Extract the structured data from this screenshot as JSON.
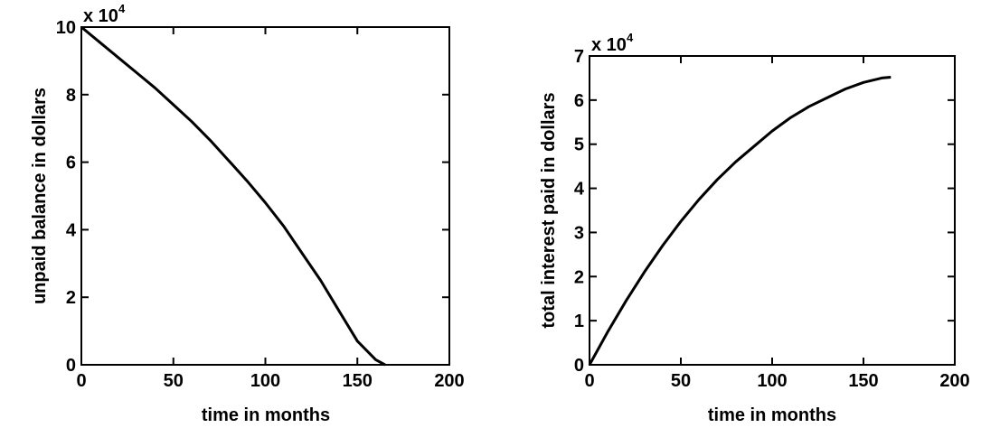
{
  "chart_data": [
    {
      "type": "line",
      "title": "",
      "xlabel": "time in months",
      "ylabel": "unpaid balance in dollars",
      "y_multiplier_label": "x 10",
      "y_multiplier_exponent": "4",
      "xlim": [
        0,
        200
      ],
      "ylim": [
        0,
        10
      ],
      "x_ticks": [
        0,
        50,
        100,
        150,
        200
      ],
      "y_ticks": [
        0,
        2,
        4,
        6,
        8,
        10
      ],
      "x_tick_labels": [
        "0",
        "50",
        "100",
        "150",
        "200"
      ],
      "y_tick_labels": [
        "0",
        "2",
        "4",
        "6",
        "8",
        "10"
      ],
      "grid": false,
      "line_color": "#000000",
      "series": [
        {
          "x": [
            0,
            10,
            20,
            30,
            40,
            50,
            60,
            70,
            80,
            90,
            100,
            110,
            120,
            130,
            140,
            150,
            160,
            165
          ],
          "values": [
            10.0,
            9.55,
            9.1,
            8.65,
            8.2,
            7.7,
            7.2,
            6.65,
            6.05,
            5.45,
            4.8,
            4.1,
            3.3,
            2.5,
            1.6,
            0.7,
            0.15,
            0.0
          ]
        }
      ]
    },
    {
      "type": "line",
      "title": "",
      "xlabel": "time in months",
      "ylabel": "total interest paid in dollars",
      "y_multiplier_label": "x 10",
      "y_multiplier_exponent": "4",
      "xlim": [
        0,
        200
      ],
      "ylim": [
        0,
        7
      ],
      "x_ticks": [
        0,
        50,
        100,
        150,
        200
      ],
      "y_ticks": [
        0,
        1,
        2,
        3,
        4,
        5,
        6,
        7
      ],
      "x_tick_labels": [
        "0",
        "50",
        "100",
        "150",
        "200"
      ],
      "y_tick_labels": [
        "0",
        "1",
        "2",
        "3",
        "4",
        "5",
        "6",
        "7"
      ],
      "grid": false,
      "line_color": "#000000",
      "series": [
        {
          "x": [
            0,
            10,
            20,
            30,
            40,
            50,
            60,
            70,
            80,
            90,
            100,
            110,
            120,
            130,
            140,
            150,
            160,
            165
          ],
          "values": [
            0.0,
            0.75,
            1.45,
            2.1,
            2.7,
            3.25,
            3.75,
            4.2,
            4.6,
            4.95,
            5.3,
            5.6,
            5.85,
            6.05,
            6.25,
            6.4,
            6.5,
            6.52
          ]
        }
      ]
    }
  ]
}
